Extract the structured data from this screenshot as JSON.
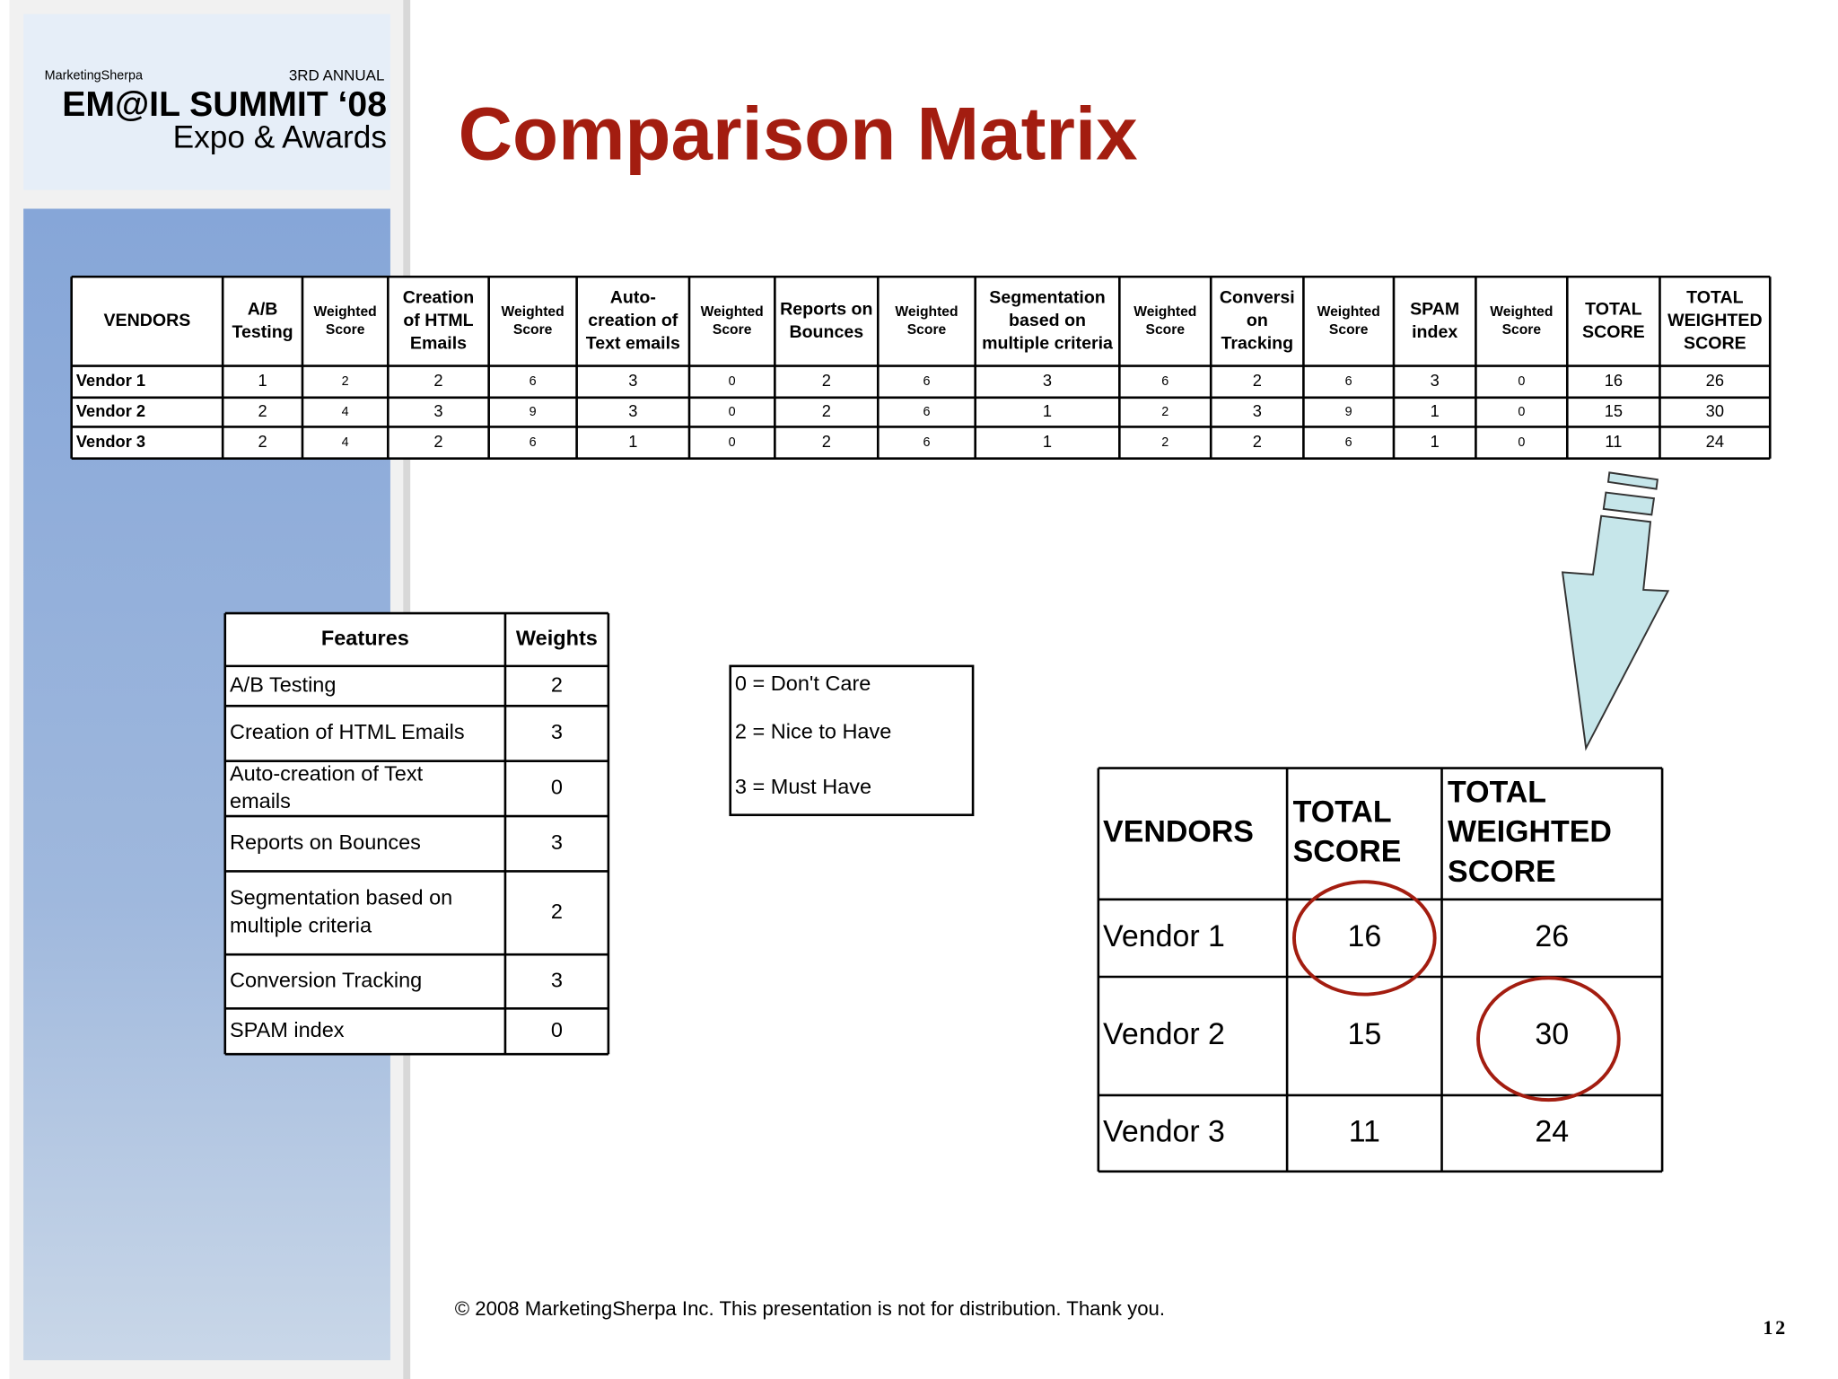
{
  "logo": {
    "brand": "MarketingSherpa",
    "edition": "3RD ANNUAL",
    "event": "EM@IL SUMMIT ‘08",
    "subtitle": "Expo & Awards"
  },
  "title": "Comparison Matrix",
  "matrix": {
    "header": [
      [
        "VENDORS"
      ],
      [
        "A/B",
        "Testing"
      ],
      [
        "Weighted",
        "Score"
      ],
      [
        "Creation",
        "of HTML",
        "Emails"
      ],
      [
        "Weighted",
        "Score"
      ],
      [
        "Auto-",
        "creation of",
        "Text emails"
      ],
      [
        "Weighted",
        "Score"
      ],
      [
        "Reports on",
        "Bounces"
      ],
      [
        "Weighted",
        "Score"
      ],
      [
        "Segmentation",
        "based on",
        "multiple criteria"
      ],
      [
        "Weighted",
        "Score"
      ],
      [
        "Conversi",
        "on",
        "Tracking"
      ],
      [
        "Weighted",
        "Score"
      ],
      [
        "SPAM",
        "index"
      ],
      [
        "Weighted",
        "Score"
      ],
      [
        "TOTAL",
        "SCORE"
      ],
      [
        "TOTAL",
        "WEIGHTED",
        "SCORE"
      ]
    ],
    "rows": [
      [
        "Vendor 1",
        1,
        2,
        2,
        6,
        3,
        0,
        2,
        6,
        3,
        6,
        2,
        6,
        3,
        0,
        16,
        26
      ],
      [
        "Vendor 2",
        2,
        4,
        3,
        9,
        3,
        0,
        2,
        6,
        1,
        2,
        3,
        9,
        1,
        0,
        15,
        30
      ],
      [
        "Vendor 3",
        2,
        4,
        2,
        6,
        1,
        0,
        2,
        6,
        1,
        2,
        2,
        6,
        1,
        0,
        11,
        24
      ]
    ]
  },
  "features": {
    "header": [
      [
        "Features"
      ],
      [
        "Weights"
      ]
    ],
    "rows": [
      [
        [
          "A/B Testing"
        ],
        2
      ],
      [
        [
          "Creation of HTML Emails"
        ],
        3
      ],
      [
        [
          "Auto-creation of Text",
          "emails"
        ],
        0
      ],
      [
        [
          "Reports on Bounces"
        ],
        3
      ],
      [
        [
          "Segmentation based on",
          "multiple criteria"
        ],
        2
      ],
      [
        [
          "Conversion Tracking"
        ],
        3
      ],
      [
        [
          "SPAM index"
        ],
        0
      ]
    ]
  },
  "legend": [
    "0 = Don't Care",
    "2 = Nice to Have",
    "3 = Must Have"
  ],
  "summary": {
    "header": [
      [
        "VENDORS"
      ],
      [
        "TOTAL",
        "SCORE"
      ],
      [
        "TOTAL",
        "WEIGHTED",
        "SCORE"
      ]
    ],
    "rows": [
      [
        "Vendor 1",
        16,
        26
      ],
      [
        "Vendor 2",
        15,
        30
      ],
      [
        "Vendor 3",
        11,
        24
      ]
    ]
  },
  "footer": "© 2008 MarketingSherpa Inc. This presentation is not for distribution. Thank you.",
  "page_number": "12"
}
